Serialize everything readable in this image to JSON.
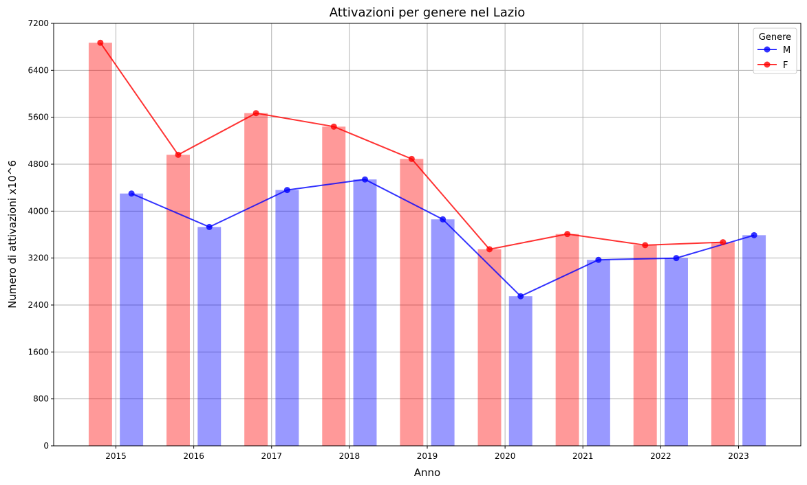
{
  "chart_data": {
    "type": "bar",
    "title": "Attivazioni per genere nel Lazio",
    "xlabel": "Anno",
    "ylabel": "Numero di attivazioni x10^6",
    "categories": [
      "2015",
      "2016",
      "2017",
      "2018",
      "2019",
      "2020",
      "2021",
      "2022",
      "2023"
    ],
    "ylim": [
      0,
      7200
    ],
    "yticks": [
      0,
      800,
      1600,
      2400,
      3200,
      4000,
      4800,
      5600,
      6400,
      7200
    ],
    "grid": true,
    "legend": {
      "title": "Genere",
      "placement": "top-right"
    },
    "series": [
      {
        "name": "M",
        "color": "#0000ff",
        "values": [
          4300,
          3730,
          4360,
          4540,
          3860,
          2550,
          3170,
          3200,
          3590
        ]
      },
      {
        "name": "F",
        "color": "#ff0000",
        "values": [
          6870,
          4960,
          5670,
          5440,
          4890,
          3350,
          3610,
          3420,
          3470
        ]
      }
    ]
  }
}
